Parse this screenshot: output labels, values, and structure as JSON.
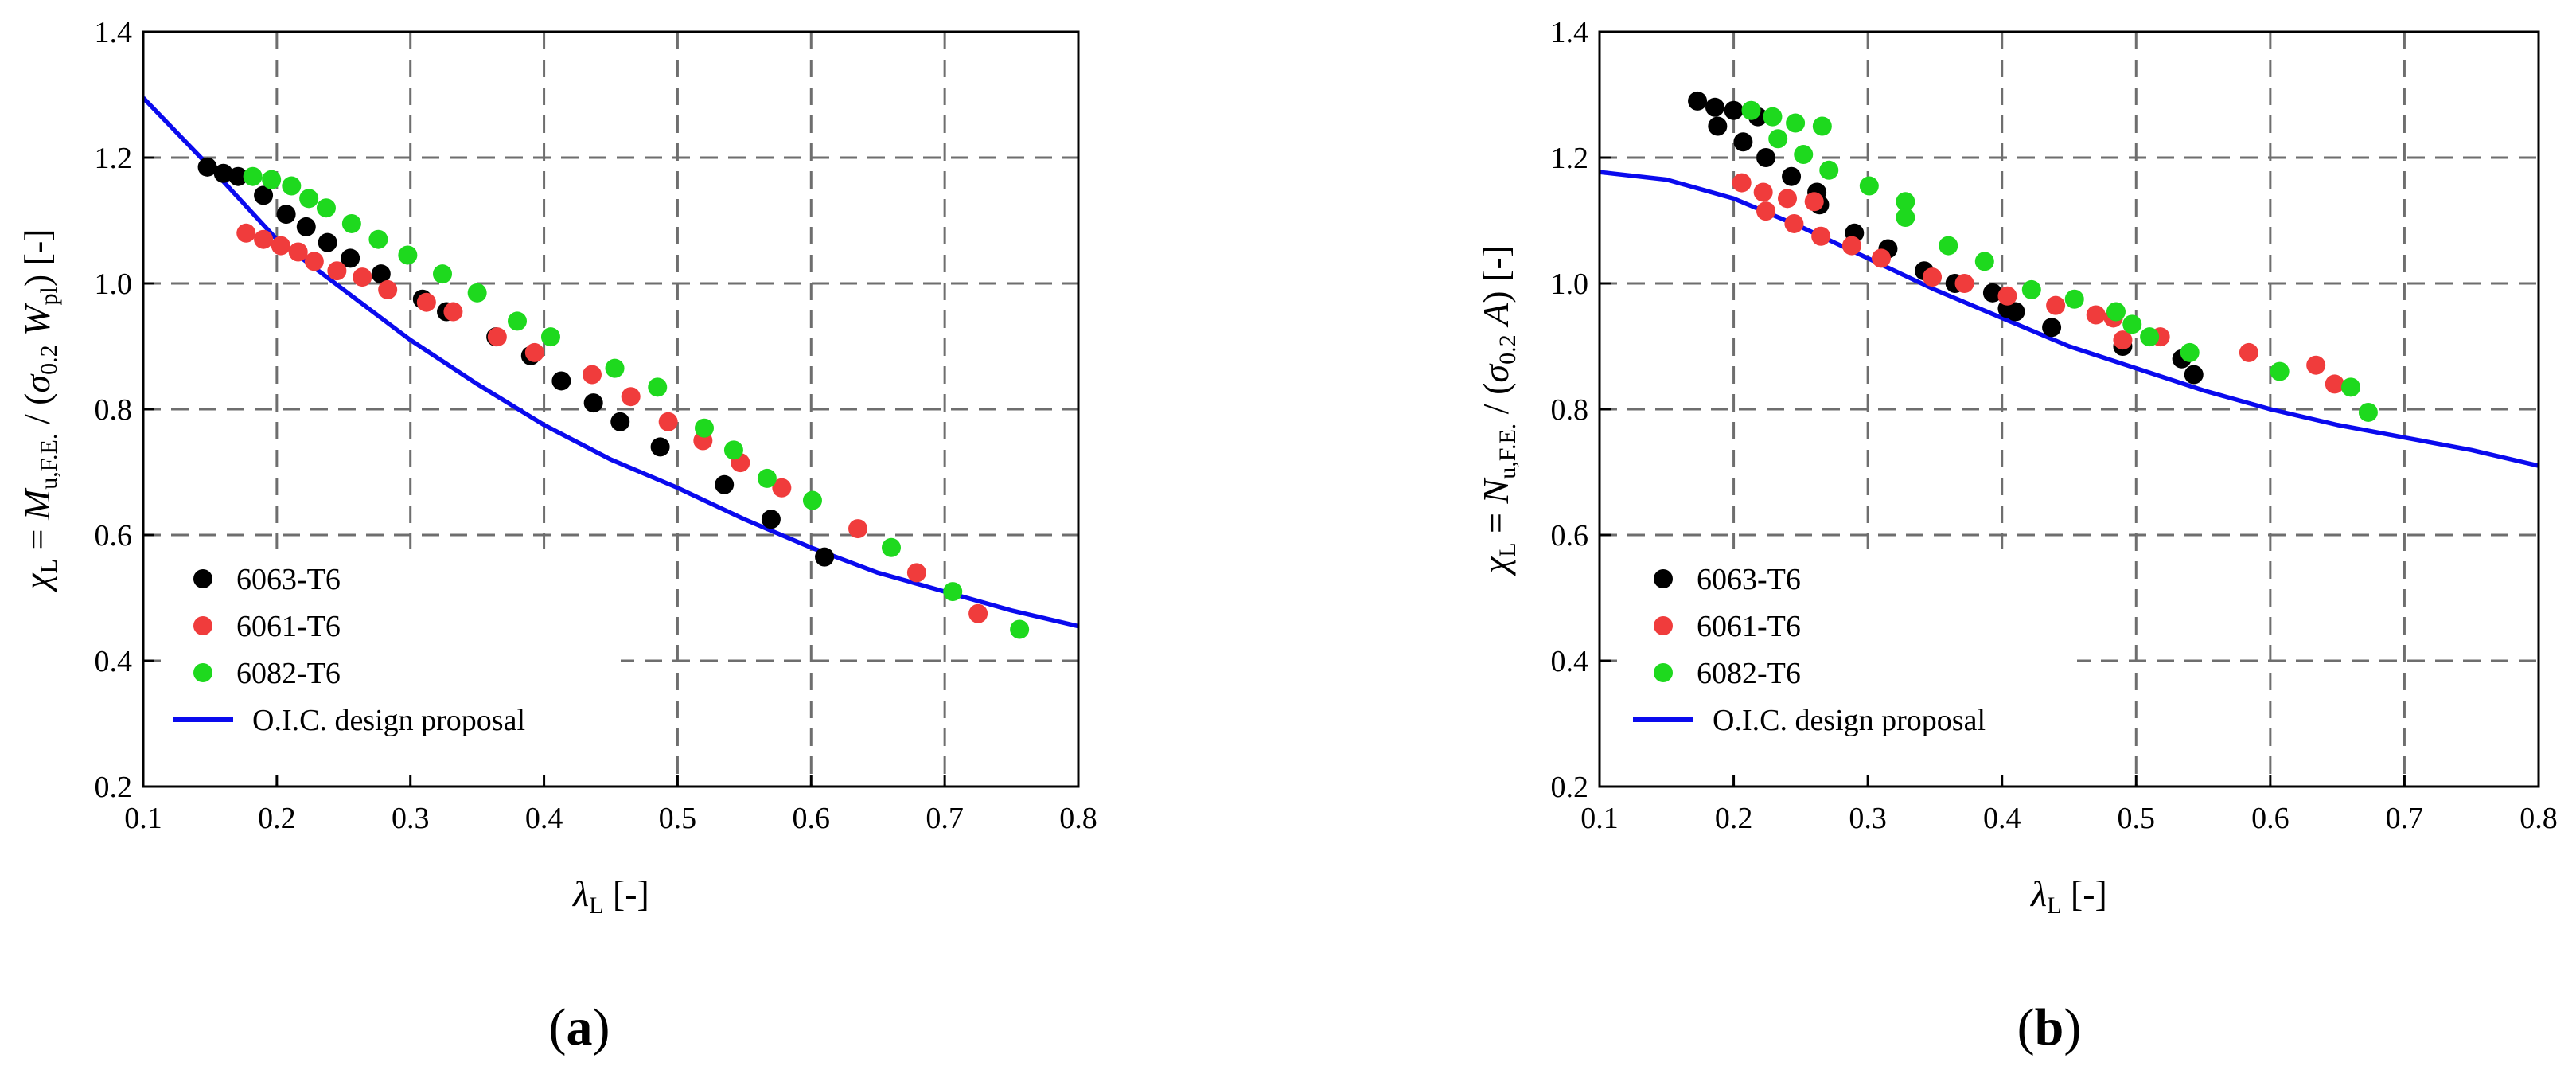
{
  "colors": {
    "6063-T6": "#000000",
    "6061-T6": "#f03c3c",
    "6082-T6": "#1ed91e",
    "design": "#0a0aee",
    "grid": "#6e6e6e"
  },
  "chart_data": [
    {
      "type": "scatter",
      "panel_label": "(a)",
      "xlabel": {
        "symbol": "λ",
        "sub": "L",
        "suffix": " [-]"
      },
      "ylabel": {
        "lhs_symbol": "χ",
        "lhs_sub": "L",
        "eq": " = ",
        "num_symbol": "M",
        "num_sub": "u,F.E.",
        "slash": " / (",
        "sigma": "σ",
        "sigma_sub": "0.2",
        "den_symbol": " W",
        "den_sub": "pl",
        "suffix": ") [-]"
      },
      "xlim": [
        0.1,
        0.8
      ],
      "ylim": [
        0.2,
        1.4
      ],
      "xticks": [
        "0.1",
        "0.2",
        "0.3",
        "0.4",
        "0.5",
        "0.6",
        "0.7",
        "0.8"
      ],
      "yticks": [
        "0.2",
        "0.4",
        "0.6",
        "0.8",
        "1.0",
        "1.2",
        "1.4"
      ],
      "legend": [
        "6063-T6",
        "6061-T6",
        "6082-T6",
        "O.I.C. design proposal"
      ],
      "series": [
        {
          "name": "6063-T6",
          "color_key": "6063-T6",
          "x": [
            0.148,
            0.16,
            0.171,
            0.19,
            0.207,
            0.222,
            0.238,
            0.255,
            0.278,
            0.309,
            0.327,
            0.364,
            0.39,
            0.413,
            0.437,
            0.457,
            0.487,
            0.535,
            0.57,
            0.61
          ],
          "y": [
            1.185,
            1.175,
            1.17,
            1.14,
            1.11,
            1.09,
            1.065,
            1.04,
            1.015,
            0.975,
            0.955,
            0.915,
            0.885,
            0.845,
            0.81,
            0.78,
            0.74,
            0.68,
            0.625,
            0.565
          ]
        },
        {
          "name": "6061-T6",
          "color_key": "6061-T6",
          "x": [
            0.177,
            0.19,
            0.203,
            0.216,
            0.228,
            0.245,
            0.264,
            0.283,
            0.312,
            0.332,
            0.365,
            0.393,
            0.436,
            0.465,
            0.493,
            0.519,
            0.547,
            0.578,
            0.635,
            0.679,
            0.725
          ],
          "y": [
            1.08,
            1.07,
            1.06,
            1.05,
            1.035,
            1.02,
            1.01,
            0.99,
            0.97,
            0.955,
            0.915,
            0.89,
            0.855,
            0.82,
            0.78,
            0.75,
            0.715,
            0.675,
            0.61,
            0.54,
            0.475
          ]
        },
        {
          "name": "6082-T6",
          "color_key": "6082-T6",
          "x": [
            0.182,
            0.196,
            0.211,
            0.224,
            0.237,
            0.256,
            0.276,
            0.298,
            0.324,
            0.35,
            0.38,
            0.405,
            0.453,
            0.485,
            0.52,
            0.542,
            0.567,
            0.601,
            0.66,
            0.706,
            0.756
          ],
          "y": [
            1.17,
            1.165,
            1.155,
            1.135,
            1.12,
            1.095,
            1.07,
            1.045,
            1.015,
            0.985,
            0.94,
            0.915,
            0.865,
            0.835,
            0.77,
            0.735,
            0.69,
            0.655,
            0.58,
            0.51,
            0.45
          ]
        }
      ],
      "curve": {
        "name": "O.I.C. design proposal",
        "color_key": "design",
        "x": [
          0.1,
          0.15,
          0.2,
          0.25,
          0.3,
          0.35,
          0.4,
          0.45,
          0.5,
          0.55,
          0.6,
          0.65,
          0.7,
          0.75,
          0.8
        ],
        "y": [
          1.295,
          1.185,
          1.07,
          0.99,
          0.91,
          0.84,
          0.775,
          0.72,
          0.675,
          0.625,
          0.58,
          0.54,
          0.51,
          0.48,
          0.455
        ]
      }
    },
    {
      "type": "scatter",
      "panel_label": "(b)",
      "xlabel": {
        "symbol": "λ",
        "sub": "L",
        "suffix": " [-]"
      },
      "ylabel": {
        "lhs_symbol": "χ",
        "lhs_sub": "L",
        "eq": " = ",
        "num_symbol": "N",
        "num_sub": "u,F.E.",
        "slash": " / (",
        "sigma": "σ",
        "sigma_sub": "0.2",
        "den_symbol": " A",
        "den_sub": "",
        "suffix": ") [-]"
      },
      "xlim": [
        0.1,
        0.8
      ],
      "ylim": [
        0.2,
        1.4
      ],
      "xticks": [
        "0.1",
        "0.2",
        "0.3",
        "0.4",
        "0.5",
        "0.6",
        "0.7",
        "0.8"
      ],
      "yticks": [
        "0.2",
        "0.4",
        "0.6",
        "0.8",
        "1.0",
        "1.2",
        "1.4"
      ],
      "legend": [
        "6063-T6",
        "6061-T6",
        "6082-T6",
        "O.I.C. design proposal"
      ],
      "series": [
        {
          "name": "6063-T6",
          "color_key": "6063-T6",
          "x": [
            0.173,
            0.186,
            0.188,
            0.2,
            0.207,
            0.218,
            0.224,
            0.243,
            0.262,
            0.264,
            0.29,
            0.315,
            0.342,
            0.365,
            0.393,
            0.404,
            0.41,
            0.437,
            0.49,
            0.534,
            0.543
          ],
          "y": [
            1.29,
            1.28,
            1.25,
            1.275,
            1.225,
            1.265,
            1.2,
            1.17,
            1.145,
            1.125,
            1.08,
            1.055,
            1.02,
            1.0,
            0.985,
            0.96,
            0.955,
            0.93,
            0.9,
            0.88,
            0.855
          ]
        },
        {
          "name": "6061-T6",
          "color_key": "6061-T6",
          "x": [
            0.206,
            0.222,
            0.224,
            0.24,
            0.245,
            0.26,
            0.265,
            0.288,
            0.31,
            0.348,
            0.372,
            0.404,
            0.44,
            0.47,
            0.483,
            0.49,
            0.518,
            0.584,
            0.634,
            0.648
          ],
          "y": [
            1.16,
            1.145,
            1.115,
            1.135,
            1.095,
            1.13,
            1.075,
            1.06,
            1.04,
            1.01,
            1.0,
            0.98,
            0.965,
            0.95,
            0.945,
            0.91,
            0.915,
            0.89,
            0.87,
            0.84
          ]
        },
        {
          "name": "6082-T6",
          "color_key": "6082-T6",
          "x": [
            0.213,
            0.229,
            0.233,
            0.246,
            0.252,
            0.266,
            0.271,
            0.301,
            0.328,
            0.328,
            0.36,
            0.387,
            0.422,
            0.454,
            0.485,
            0.497,
            0.51,
            0.54,
            0.607,
            0.66,
            0.673
          ],
          "y": [
            1.275,
            1.265,
            1.23,
            1.255,
            1.205,
            1.25,
            1.18,
            1.155,
            1.13,
            1.105,
            1.06,
            1.035,
            0.99,
            0.975,
            0.955,
            0.935,
            0.915,
            0.89,
            0.86,
            0.835,
            0.795
          ]
        }
      ],
      "curve": {
        "name": "O.I.C. design proposal",
        "color_key": "design",
        "x": [
          0.1,
          0.15,
          0.2,
          0.25,
          0.3,
          0.35,
          0.4,
          0.45,
          0.5,
          0.55,
          0.6,
          0.65,
          0.7,
          0.75,
          0.8
        ],
        "y": [
          1.177,
          1.165,
          1.135,
          1.09,
          1.04,
          0.99,
          0.945,
          0.9,
          0.865,
          0.83,
          0.8,
          0.775,
          0.755,
          0.735,
          0.71
        ]
      }
    }
  ]
}
